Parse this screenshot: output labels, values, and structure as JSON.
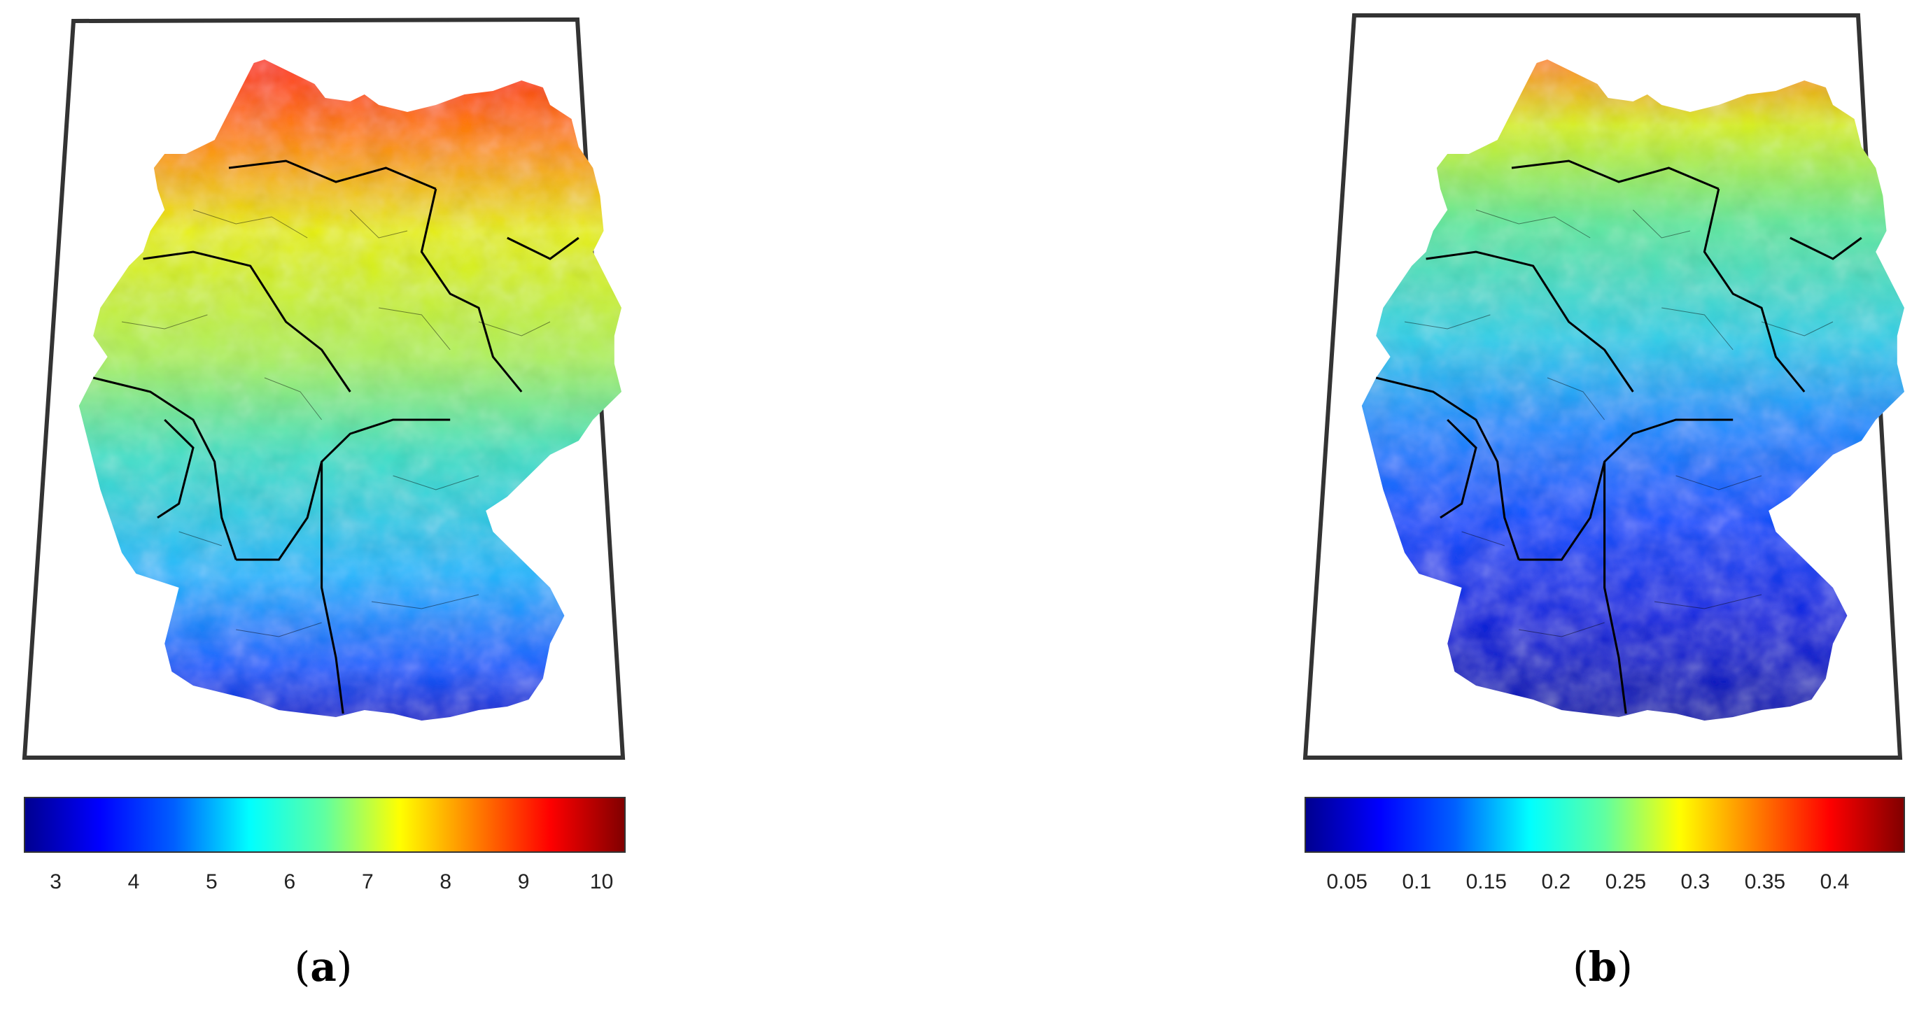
{
  "panels": [
    {
      "id": "a",
      "label_open": "(",
      "label_letter": "a",
      "label_close": ")",
      "colorbar": {
        "ticks": [
          "3",
          "4",
          "5",
          "6",
          "7",
          "8",
          "9",
          "10"
        ],
        "tick_values": [
          3,
          4,
          5,
          6,
          7,
          8,
          9,
          10
        ],
        "range": [
          2.6,
          10.3
        ],
        "colormap": "jet"
      },
      "map_description_values": {
        "north": 8.8,
        "center": 6.4,
        "south": 4.0
      }
    },
    {
      "id": "b",
      "label_open": "(",
      "label_letter": "b",
      "label_close": ")",
      "colorbar": {
        "ticks": [
          "0.05",
          "0.1",
          "0.15",
          "0.2",
          "0.25",
          "0.3",
          "0.35",
          "0.4"
        ],
        "tick_values": [
          0.05,
          0.1,
          0.15,
          0.2,
          0.25,
          0.3,
          0.35,
          0.4
        ],
        "range": [
          0.02,
          0.45
        ],
        "colormap": "jet"
      },
      "map_description_values": {
        "north": 0.27,
        "center": 0.18,
        "south": 0.08
      }
    }
  ],
  "colors": {
    "jet": [
      "#00008f",
      "#0000ff",
      "#0080ff",
      "#00ffff",
      "#80ff80",
      "#ffff00",
      "#ff8000",
      "#ff0000",
      "#800000"
    ],
    "frame": "#000000",
    "borders": "#000000"
  }
}
